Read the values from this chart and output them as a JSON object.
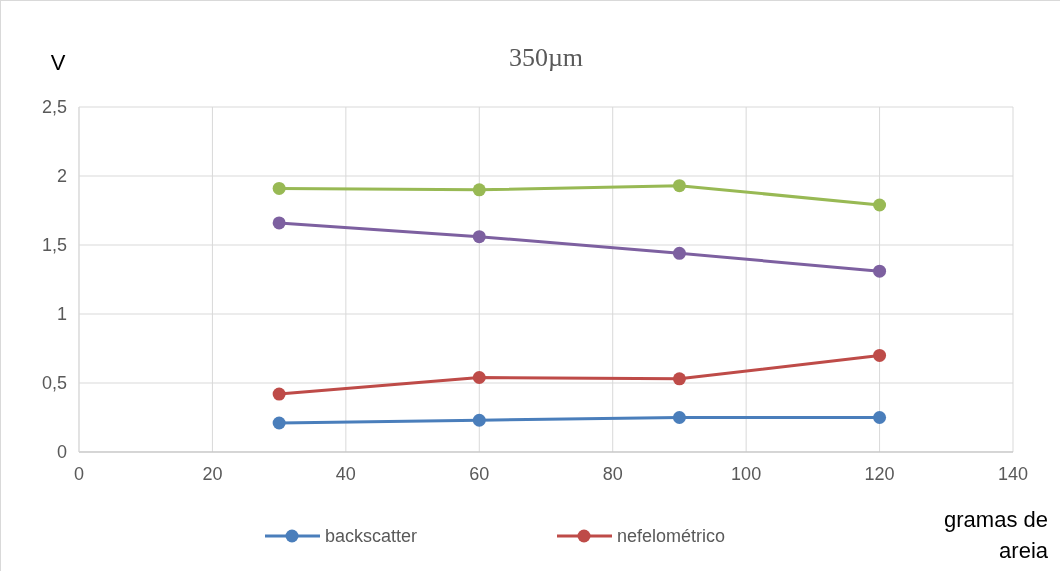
{
  "chart_data": {
    "type": "line",
    "title": "350µm",
    "ylabel": "V",
    "xlabel": "gramas de areia",
    "x": [
      30,
      60,
      90,
      120
    ],
    "series": [
      {
        "name": "backscatter",
        "color": "#4a7ebb",
        "values": [
          0.21,
          0.23,
          0.25,
          0.25
        ]
      },
      {
        "name": "nefelométrico",
        "color": "#be4b48",
        "values": [
          0.42,
          0.54,
          0.53,
          0.7
        ]
      },
      {
        "color": "#98b954",
        "values": [
          1.91,
          1.9,
          1.93,
          1.79
        ]
      },
      {
        "color": "#7d60a0",
        "values": [
          1.66,
          1.56,
          1.44,
          1.31
        ]
      }
    ],
    "xlim": [
      0,
      140
    ],
    "xticks": [
      0,
      20,
      40,
      60,
      80,
      100,
      120,
      140
    ],
    "ylim": [
      0,
      2.5
    ],
    "yticks": [
      0,
      {
        "value": 0.5,
        "label": "0,5"
      },
      1,
      {
        "value": 1.5,
        "label": "1,5"
      },
      2,
      {
        "value": 2.5,
        "label": "2,5"
      }
    ],
    "grid": true,
    "legend": "bottom",
    "marker": "circle",
    "line_style": "solid"
  }
}
